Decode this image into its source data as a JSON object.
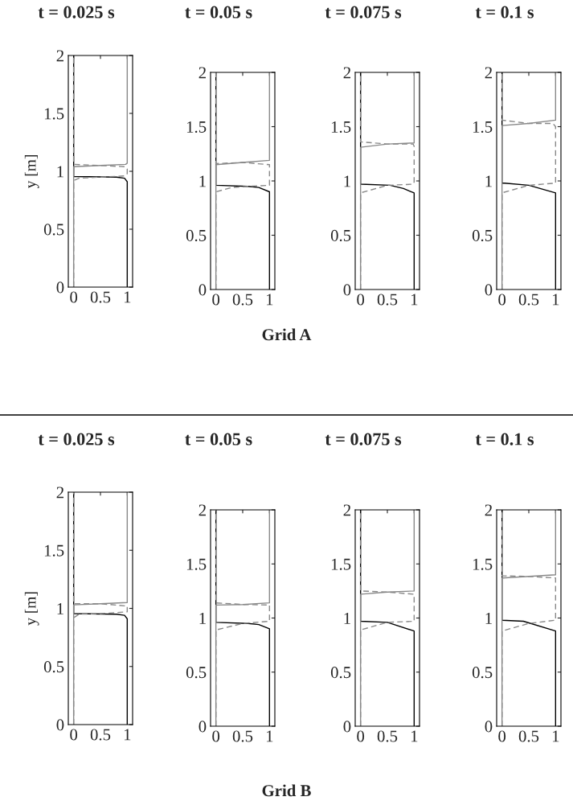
{
  "chart_data": [
    {
      "type": "line",
      "title": "t = 0.025 s",
      "ylabel": "y [m]",
      "annotations": [
        "Grid A"
      ],
      "xlim": [
        -0.1,
        1.1
      ],
      "ylim": [
        0,
        2
      ],
      "xticks": [
        0,
        0.5,
        1
      ],
      "yticks": [
        0,
        0.5,
        1,
        1.5,
        2
      ],
      "series": [
        {
          "color": "#000000",
          "line_style": "solid",
          "x": [
            1,
            1,
            0.95,
            0.8,
            0,
            0
          ],
          "values": [
            0,
            0.91,
            0.94,
            0.95,
            0.955,
            2
          ]
        },
        {
          "color": "#888888",
          "line_style": "solid",
          "x": [
            0,
            0,
            0.5,
            0.97,
            1,
            1
          ],
          "values": [
            0,
            1.04,
            1.05,
            1.06,
            1.07,
            2
          ]
        },
        {
          "color": "#888888",
          "line_style": "dashed",
          "x": [
            0,
            0,
            0.1,
            0.5,
            0.95,
            1,
            1,
            0.95,
            0.5,
            0,
            0
          ],
          "values": [
            0,
            0.92,
            0.94,
            0.95,
            0.96,
            0.98,
            1.02,
            1.04,
            1.05,
            1.06,
            2
          ]
        }
      ]
    },
    {
      "type": "line",
      "title": "t = 0.05 s",
      "xlim": [
        -0.1,
        1.1
      ],
      "ylim": [
        0,
        2
      ],
      "xticks": [
        0,
        0.5,
        1
      ],
      "yticks": [
        0,
        0.5,
        1,
        1.5,
        2
      ],
      "series": [
        {
          "color": "#000000",
          "line_style": "solid",
          "x": [
            1,
            1,
            0.8,
            0.6,
            0,
            0
          ],
          "values": [
            0,
            0.9,
            0.94,
            0.95,
            0.96,
            2
          ]
        },
        {
          "color": "#888888",
          "line_style": "solid",
          "x": [
            0,
            0,
            0.5,
            1,
            1
          ],
          "values": [
            0,
            1.15,
            1.17,
            1.19,
            2
          ]
        },
        {
          "color": "#888888",
          "line_style": "dashed",
          "x": [
            0,
            0,
            0.3,
            0.6,
            1,
            1,
            0.5,
            0,
            0
          ],
          "values": [
            0,
            0.9,
            0.94,
            0.95,
            0.96,
            1.15,
            1.17,
            1.16,
            2
          ]
        }
      ]
    },
    {
      "type": "line",
      "title": "t = 0.075 s",
      "xlim": [
        -0.1,
        1.1
      ],
      "ylim": [
        0,
        2
      ],
      "xticks": [
        0,
        0.5,
        1
      ],
      "yticks": [
        0,
        0.5,
        1,
        1.5,
        2
      ],
      "series": [
        {
          "color": "#000000",
          "line_style": "solid",
          "x": [
            1,
            1,
            0.8,
            0.55,
            0,
            0
          ],
          "values": [
            0,
            0.89,
            0.93,
            0.96,
            0.97,
            2
          ]
        },
        {
          "color": "#888888",
          "line_style": "solid",
          "x": [
            0,
            0,
            0.5,
            1,
            1
          ],
          "values": [
            0,
            1.31,
            1.34,
            1.35,
            2
          ]
        },
        {
          "color": "#888888",
          "line_style": "dashed",
          "x": [
            0,
            0,
            0.5,
            0.98,
            1,
            1,
            0.98,
            0.5,
            0,
            0
          ],
          "values": [
            0,
            0.89,
            0.96,
            0.97,
            0.99,
            1.32,
            1.34,
            1.34,
            1.36,
            2
          ]
        }
      ]
    },
    {
      "type": "line",
      "title": "t = 0.1 s",
      "xlim": [
        -0.1,
        1.1
      ],
      "ylim": [
        0,
        2
      ],
      "xticks": [
        0,
        0.5,
        1
      ],
      "yticks": [
        0,
        0.5,
        1,
        1.5,
        2
      ],
      "series": [
        {
          "color": "#000000",
          "line_style": "solid",
          "x": [
            1,
            1,
            0.5,
            0.05,
            0,
            0
          ],
          "values": [
            0,
            0.89,
            0.96,
            0.98,
            0.98,
            2
          ]
        },
        {
          "color": "#888888",
          "line_style": "solid",
          "x": [
            0,
            0,
            0.5,
            1,
            1
          ],
          "values": [
            0,
            1.51,
            1.53,
            1.56,
            2
          ]
        },
        {
          "color": "#888888",
          "line_style": "dashed",
          "x": [
            0,
            0,
            0.5,
            1,
            1,
            0.95,
            0.5,
            0,
            0
          ],
          "values": [
            0,
            0.89,
            0.96,
            0.98,
            1.5,
            1.53,
            1.53,
            1.56,
            2
          ]
        }
      ]
    },
    {
      "type": "line",
      "title": "t = 0.025 s",
      "ylabel": "y [m]",
      "annotations": [
        "Grid B"
      ],
      "xlim": [
        -0.1,
        1.1
      ],
      "ylim": [
        0,
        2
      ],
      "xticks": [
        0,
        0.5,
        1
      ],
      "yticks": [
        0,
        0.5,
        1,
        1.5,
        2
      ],
      "series": [
        {
          "color": "#000000",
          "line_style": "solid",
          "x": [
            1,
            1,
            0.95,
            0.8,
            0,
            0
          ],
          "values": [
            0,
            0.91,
            0.94,
            0.95,
            0.955,
            2
          ]
        },
        {
          "color": "#888888",
          "line_style": "solid",
          "x": [
            0,
            0,
            0.5,
            1,
            1
          ],
          "values": [
            0,
            1.03,
            1.04,
            1.05,
            2
          ]
        },
        {
          "color": "#888888",
          "line_style": "dashed",
          "x": [
            0,
            0,
            0.1,
            0.5,
            1,
            1,
            0.5,
            0,
            0
          ],
          "values": [
            0,
            0.92,
            0.95,
            0.955,
            0.97,
            1.02,
            1.04,
            1.04,
            2
          ]
        }
      ]
    },
    {
      "type": "line",
      "title": "t = 0.05 s",
      "xlim": [
        -0.1,
        1.1
      ],
      "ylim": [
        0,
        2
      ],
      "xticks": [
        0,
        0.5,
        1
      ],
      "yticks": [
        0,
        0.5,
        1,
        1.5,
        2
      ],
      "series": [
        {
          "color": "#000000",
          "line_style": "solid",
          "x": [
            1,
            1,
            0.8,
            0.6,
            0,
            0
          ],
          "values": [
            0,
            0.9,
            0.94,
            0.95,
            0.96,
            2
          ]
        },
        {
          "color": "#888888",
          "line_style": "solid",
          "x": [
            0,
            0,
            0.5,
            1,
            1
          ],
          "values": [
            0,
            1.12,
            1.125,
            1.14,
            2
          ]
        },
        {
          "color": "#888888",
          "line_style": "dashed",
          "x": [
            0,
            0,
            0.5,
            1,
            1,
            0.5,
            0,
            0
          ],
          "values": [
            0,
            0.89,
            0.95,
            0.97,
            1.12,
            1.125,
            1.14,
            2
          ]
        }
      ]
    },
    {
      "type": "line",
      "title": "t = 0.075 s",
      "xlim": [
        -0.1,
        1.1
      ],
      "ylim": [
        0,
        2
      ],
      "xticks": [
        0,
        0.5,
        1
      ],
      "yticks": [
        0,
        0.5,
        1,
        1.5,
        2
      ],
      "series": [
        {
          "color": "#000000",
          "line_style": "solid",
          "x": [
            1,
            1,
            0.5,
            0,
            0
          ],
          "values": [
            0,
            0.88,
            0.96,
            0.97,
            2
          ]
        },
        {
          "color": "#888888",
          "line_style": "solid",
          "x": [
            0,
            0,
            0.5,
            1,
            1
          ],
          "values": [
            0,
            1.22,
            1.24,
            1.25,
            2
          ]
        },
        {
          "color": "#888888",
          "line_style": "dashed",
          "x": [
            0,
            0,
            0.5,
            1,
            1,
            0.5,
            0,
            0
          ],
          "values": [
            0,
            0.89,
            0.96,
            0.97,
            1.22,
            1.24,
            1.25,
            2
          ]
        }
      ]
    },
    {
      "type": "line",
      "title": "t = 0.1 s",
      "xlim": [
        -0.1,
        1.1
      ],
      "ylim": [
        0,
        2
      ],
      "xticks": [
        0,
        0.5,
        1
      ],
      "yticks": [
        0,
        0.5,
        1,
        1.5,
        2
      ],
      "series": [
        {
          "color": "#000000",
          "line_style": "solid",
          "x": [
            1,
            1,
            0.4,
            0,
            0
          ],
          "values": [
            0,
            0.88,
            0.97,
            0.98,
            2
          ]
        },
        {
          "color": "#888888",
          "line_style": "solid",
          "x": [
            0,
            0,
            0.5,
            1,
            1
          ],
          "values": [
            0,
            1.37,
            1.385,
            1.4,
            2
          ]
        },
        {
          "color": "#888888",
          "line_style": "dashed",
          "x": [
            0,
            0,
            0.5,
            1,
            1,
            0.5,
            0,
            0
          ],
          "values": [
            0,
            0.88,
            0.95,
            0.98,
            1.37,
            1.385,
            1.39,
            2
          ]
        }
      ]
    }
  ]
}
